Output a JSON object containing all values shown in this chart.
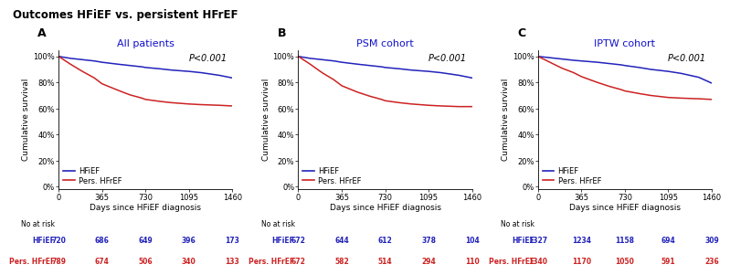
{
  "title": "Outcomes HFiEF vs. persistent HFrEF",
  "panels": [
    {
      "label": "A",
      "subtitle": "All patients",
      "pvalue": "P<0.001",
      "hfief_x": [
        0,
        100,
        200,
        300,
        365,
        500,
        600,
        700,
        730,
        850,
        950,
        1095,
        1200,
        1350,
        1460
      ],
      "hfief_y": [
        100,
        98.5,
        97.5,
        96.5,
        95.5,
        94.0,
        93.0,
        92.0,
        91.5,
        90.5,
        89.5,
        88.5,
        87.5,
        85.5,
        83.5
      ],
      "pers_x": [
        0,
        100,
        200,
        300,
        365,
        500,
        600,
        700,
        730,
        850,
        950,
        1095,
        1200,
        1350,
        1460
      ],
      "pers_y": [
        100,
        94.0,
        88.5,
        83.5,
        79.0,
        74.0,
        70.5,
        68.0,
        67.0,
        65.5,
        64.5,
        63.5,
        63.0,
        62.5,
        62.0
      ],
      "at_risk_label1": "HFiEF",
      "at_risk_label2": "Pers. HFrEF",
      "at_risk1": [
        720,
        686,
        649,
        396,
        173
      ],
      "at_risk2": [
        789,
        674,
        506,
        340,
        133
      ]
    },
    {
      "label": "B",
      "subtitle": "PSM cohort",
      "pvalue": "P<0.001",
      "hfief_x": [
        0,
        100,
        200,
        300,
        365,
        500,
        600,
        700,
        730,
        850,
        950,
        1095,
        1200,
        1350,
        1460
      ],
      "hfief_y": [
        100,
        98.5,
        97.5,
        96.5,
        95.5,
        94.0,
        93.0,
        92.0,
        91.5,
        90.5,
        89.5,
        88.5,
        87.5,
        85.5,
        83.5
      ],
      "pers_x": [
        0,
        100,
        200,
        300,
        365,
        500,
        600,
        700,
        730,
        850,
        950,
        1095,
        1200,
        1350,
        1460
      ],
      "pers_y": [
        100,
        94.0,
        87.5,
        82.0,
        77.5,
        72.5,
        69.5,
        67.0,
        66.0,
        64.5,
        63.5,
        62.5,
        62.0,
        61.5,
        61.5
      ],
      "at_risk_label1": "HFiEF",
      "at_risk_label2": "Pers. HFrEF",
      "at_risk1": [
        672,
        644,
        612,
        378,
        104
      ],
      "at_risk2": [
        672,
        582,
        514,
        294,
        110
      ]
    },
    {
      "label": "C",
      "subtitle": "IPTW cohort",
      "pvalue": "P<0.001",
      "hfief_x": [
        0,
        100,
        200,
        300,
        365,
        500,
        600,
        700,
        730,
        850,
        950,
        1095,
        1200,
        1350,
        1460
      ],
      "hfief_y": [
        100,
        99.0,
        98.0,
        97.0,
        96.5,
        95.5,
        94.5,
        93.5,
        93.0,
        91.5,
        90.0,
        88.5,
        87.0,
        84.0,
        79.5
      ],
      "pers_x": [
        0,
        100,
        200,
        300,
        365,
        500,
        600,
        700,
        730,
        850,
        950,
        1095,
        1200,
        1350,
        1460
      ],
      "pers_y": [
        100,
        95.5,
        91.0,
        87.5,
        84.5,
        80.0,
        77.0,
        74.5,
        73.5,
        71.5,
        70.0,
        68.5,
        68.0,
        67.5,
        67.0
      ],
      "at_risk_label1": "HFiEF",
      "at_risk_label2": "Pers. HFrEF",
      "at_risk1": [
        1327,
        1234,
        1158,
        694,
        309
      ],
      "at_risk2": [
        1340,
        1170,
        1050,
        591,
        236
      ]
    }
  ],
  "hfief_color": "#2222bb",
  "pers_color": "#cc2222",
  "subtitle_color": "#1111cc",
  "yticks": [
    0,
    20,
    40,
    60,
    80,
    100
  ],
  "xticks": [
    0,
    365,
    730,
    1095,
    1460
  ],
  "xlim": [
    0,
    1460
  ],
  "ylim": [
    -2,
    105
  ]
}
